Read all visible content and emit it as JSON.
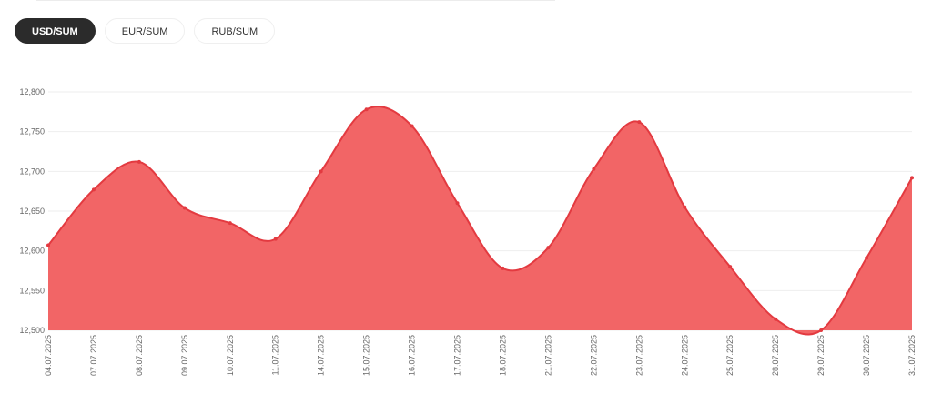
{
  "tabs": [
    {
      "label": "USD/SUM",
      "active": true
    },
    {
      "label": "EUR/SUM",
      "active": false
    },
    {
      "label": "RUB/SUM",
      "active": false
    }
  ],
  "colors": {
    "area_fill": "#f26566",
    "line": "#e33a40",
    "grid": "#eeeeee"
  },
  "chart_data": {
    "type": "area",
    "title": "",
    "xlabel": "",
    "ylabel": "",
    "ylim": [
      12500,
      12800
    ],
    "yticks": [
      12500,
      12550,
      12600,
      12650,
      12700,
      12750,
      12800
    ],
    "ytick_labels": [
      "12,500",
      "12,550",
      "12,600",
      "12,650",
      "12,700",
      "12,750",
      "12,800"
    ],
    "grid": true,
    "legend": "none",
    "categories": [
      "04.07.2025",
      "07.07.2025",
      "08.07.2025",
      "09.07.2025",
      "10.07.2025",
      "11.07.2025",
      "14.07.2025",
      "15.07.2025",
      "16.07.2025",
      "17.07.2025",
      "18.07.2025",
      "21.07.2025",
      "22.07.2025",
      "23.07.2025",
      "24.07.2025",
      "25.07.2025",
      "28.07.2025",
      "29.07.2025",
      "30.07.2025",
      "31.07.2025"
    ],
    "series": [
      {
        "name": "USD/SUM",
        "values": [
          12607,
          12677,
          12712,
          12654,
          12635,
          12615,
          12700,
          12778,
          12757,
          12660,
          12578,
          12604,
          12703,
          12762,
          12655,
          12580,
          12514,
          12500,
          12591,
          12692
        ]
      }
    ]
  }
}
